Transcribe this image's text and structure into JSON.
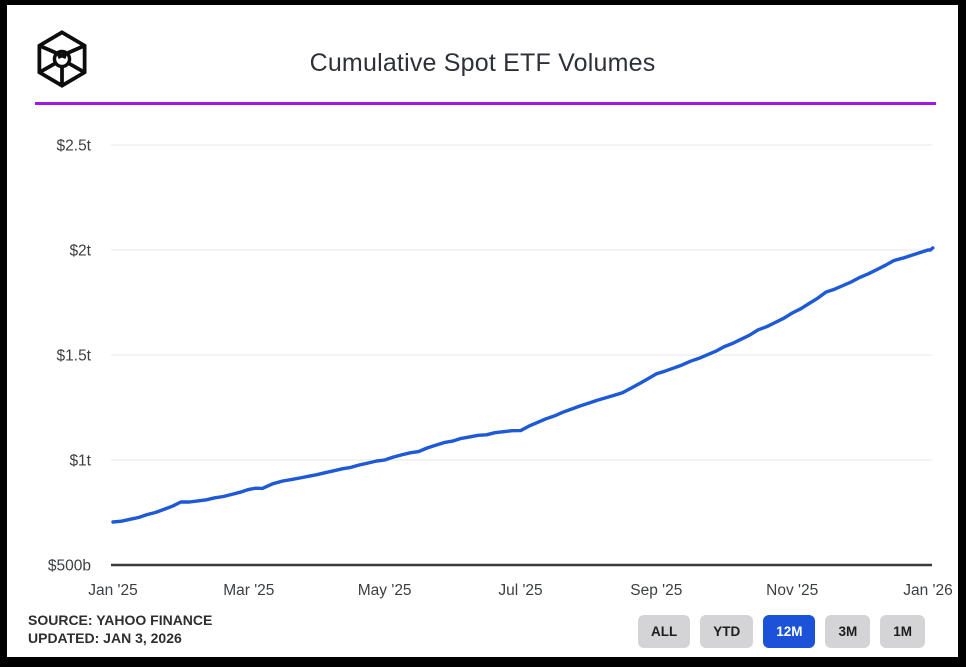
{
  "header": {
    "title": "Cumulative Spot ETF Volumes",
    "logo_icon": "blockworks-cube-icon",
    "accent_color": "#a316e8"
  },
  "chart_data": {
    "type": "line",
    "title": "Cumulative Spot ETF Volumes",
    "xlabel": "",
    "ylabel": "",
    "grid": true,
    "legend": "none",
    "x_unit": "months since Jan 3 2025",
    "y_unit": "USD trillions",
    "xlim": [
      0,
      12.07
    ],
    "ylim": [
      0.5,
      2.65
    ],
    "x_ticks": [
      {
        "t": 0,
        "label": "Jan '25"
      },
      {
        "t": 2,
        "label": "Mar '25"
      },
      {
        "t": 4,
        "label": "May '25"
      },
      {
        "t": 6,
        "label": "Jul '25"
      },
      {
        "t": 8,
        "label": "Sep '25"
      },
      {
        "t": 10,
        "label": "Nov '25"
      },
      {
        "t": 12,
        "label": "Jan '26"
      }
    ],
    "y_ticks": [
      {
        "v": 0.5,
        "label": "$500b"
      },
      {
        "v": 1.0,
        "label": "$1t"
      },
      {
        "v": 1.5,
        "label": "$1.5t"
      },
      {
        "v": 2.0,
        "label": "$2t"
      },
      {
        "v": 2.5,
        "label": "$2.5t"
      }
    ],
    "series": [
      {
        "name": "Cumulative Spot ETF Volume",
        "color": "#1e5ad6",
        "points": [
          [
            0,
            0.705
          ],
          [
            0.5,
            0.74
          ],
          [
            1,
            0.8
          ],
          [
            1.5,
            0.82
          ],
          [
            2,
            0.86
          ],
          [
            2.2,
            0.865
          ],
          [
            2.5,
            0.9
          ],
          [
            3,
            0.93
          ],
          [
            3.5,
            0.965
          ],
          [
            4,
            1.0
          ],
          [
            4.5,
            1.04
          ],
          [
            5,
            1.09
          ],
          [
            5.5,
            1.12
          ],
          [
            6,
            1.14
          ],
          [
            6.5,
            1.21
          ],
          [
            7,
            1.27
          ],
          [
            7.5,
            1.32
          ],
          [
            8,
            1.41
          ],
          [
            8.5,
            1.47
          ],
          [
            9,
            1.54
          ],
          [
            9.5,
            1.62
          ],
          [
            10,
            1.7
          ],
          [
            10.5,
            1.8
          ],
          [
            11,
            1.87
          ],
          [
            11.5,
            1.95
          ],
          [
            12,
            2.0
          ],
          [
            12.07,
            2.01
          ]
        ]
      }
    ],
    "grid_color": "#ececec",
    "axis_color": "#3a3a3a",
    "tick_label_color": "#3c4043"
  },
  "footer": {
    "source_line1": "SOURCE: YAHOO FINANCE",
    "source_line2": "UPDATED: JAN 3, 2026"
  },
  "controls": {
    "active_color": "#1b52d8",
    "active_text_color": "#ffffff",
    "inactive_color": "#d4d4d6",
    "range_buttons": [
      {
        "label": "ALL",
        "active": false
      },
      {
        "label": "YTD",
        "active": false
      },
      {
        "label": "12M",
        "active": true
      },
      {
        "label": "3M",
        "active": false
      },
      {
        "label": "1M",
        "active": false
      }
    ]
  }
}
